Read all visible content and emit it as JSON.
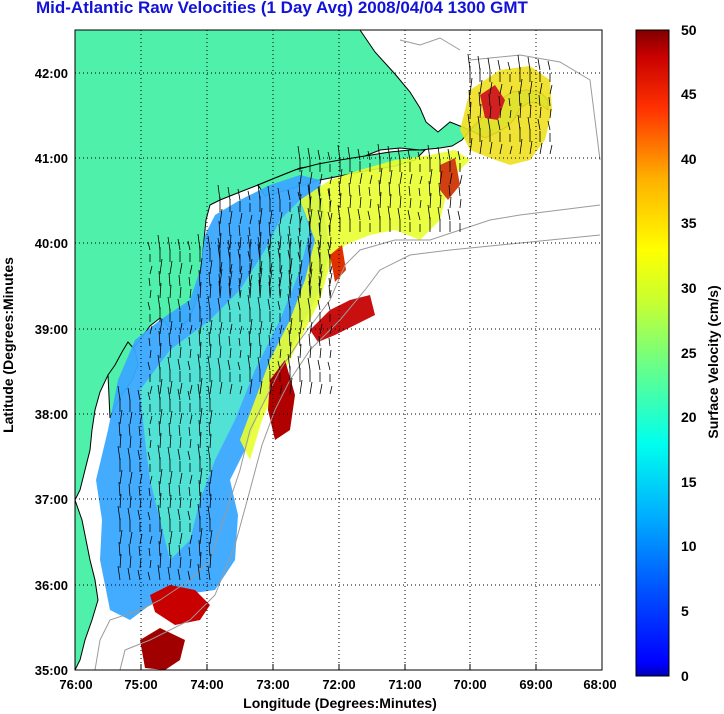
{
  "title": "Mid-Atlantic Raw Velocities (1 Day Avg) 2008/04/04 1300 GMT",
  "map": {
    "xlabel": "Longitude (Degrees:Minutes)",
    "ylabel": "Latitude (Degrees:Minutes",
    "x_ticks": [
      "76:00",
      "75:00",
      "74:00",
      "73:00",
      "72:00",
      "71:00",
      "70:00",
      "69:00",
      "68:00"
    ],
    "y_ticks": [
      "42:00",
      "41:00",
      "40:00",
      "39:00",
      "38:00",
      "37:00",
      "36:00",
      "35:00"
    ],
    "lon_range": [
      -76,
      -68
    ],
    "lat_range": [
      35,
      42.5
    ],
    "grid": "dotted",
    "land_color": "#4ff0aa",
    "coast_color": "#000000",
    "bathymetry_color": "#9a9a9a",
    "arrow_color": "#000000"
  },
  "colorbar": {
    "label": "Surface Velocity (cm/s)",
    "ticks": [
      "50",
      "45",
      "40",
      "35",
      "30",
      "25",
      "20",
      "15",
      "10",
      "5",
      "0"
    ],
    "range": [
      0,
      50
    ],
    "colormap": "jet"
  }
}
